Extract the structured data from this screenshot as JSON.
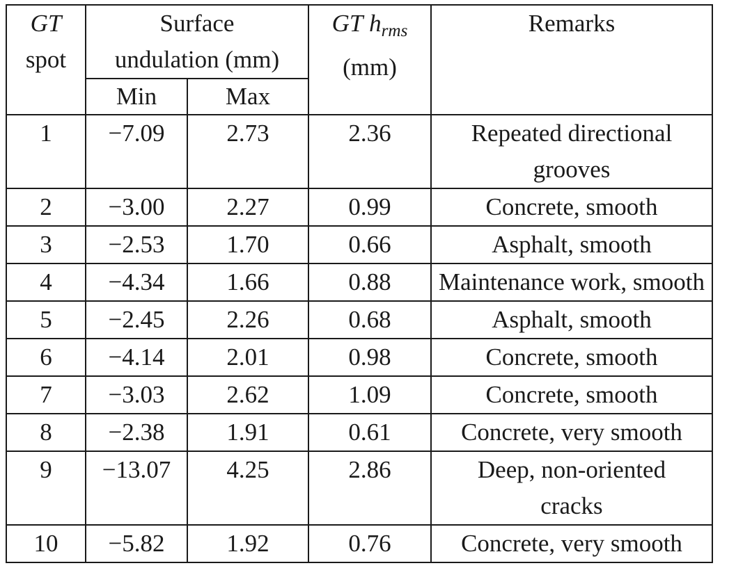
{
  "headers": {
    "gt": "GT",
    "spot": "spot",
    "undulation_line1": "Surface",
    "undulation_line2": "undulation (mm)",
    "min": "Min",
    "max": "Max",
    "hrms_gt": "GT",
    "hrms_h": "h",
    "hrms_sub": "rms",
    "hrms_unit": "(mm)",
    "remarks": "Remarks"
  },
  "rows": [
    {
      "spot": "1",
      "min": "−7.09",
      "max": "2.73",
      "hrms": "2.36",
      "remarks": "Repeated directional grooves"
    },
    {
      "spot": "2",
      "min": "−3.00",
      "max": "2.27",
      "hrms": "0.99",
      "remarks": "Concrete, smooth"
    },
    {
      "spot": "3",
      "min": "−2.53",
      "max": "1.70",
      "hrms": "0.66",
      "remarks": "Asphalt, smooth"
    },
    {
      "spot": "4",
      "min": "−4.34",
      "max": "1.66",
      "hrms": "0.88",
      "remarks": "Maintenance work, smooth"
    },
    {
      "spot": "5",
      "min": "−2.45",
      "max": "2.26",
      "hrms": "0.68",
      "remarks": "Asphalt, smooth"
    },
    {
      "spot": "6",
      "min": "−4.14",
      "max": "2.01",
      "hrms": "0.98",
      "remarks": "Concrete, smooth"
    },
    {
      "spot": "7",
      "min": "−3.03",
      "max": "2.62",
      "hrms": "1.09",
      "remarks": "Concrete, smooth"
    },
    {
      "spot": "8",
      "min": "−2.38",
      "max": "1.91",
      "hrms": "0.61",
      "remarks": "Concrete, very smooth"
    },
    {
      "spot": "9",
      "min": "−13.07",
      "max": "4.25",
      "hrms": "2.86",
      "remarks": "Deep, non-oriented cracks"
    },
    {
      "spot": "10",
      "min": "−5.82",
      "max": "1.92",
      "hrms": "0.76",
      "remarks": "Concrete, very smooth"
    }
  ]
}
